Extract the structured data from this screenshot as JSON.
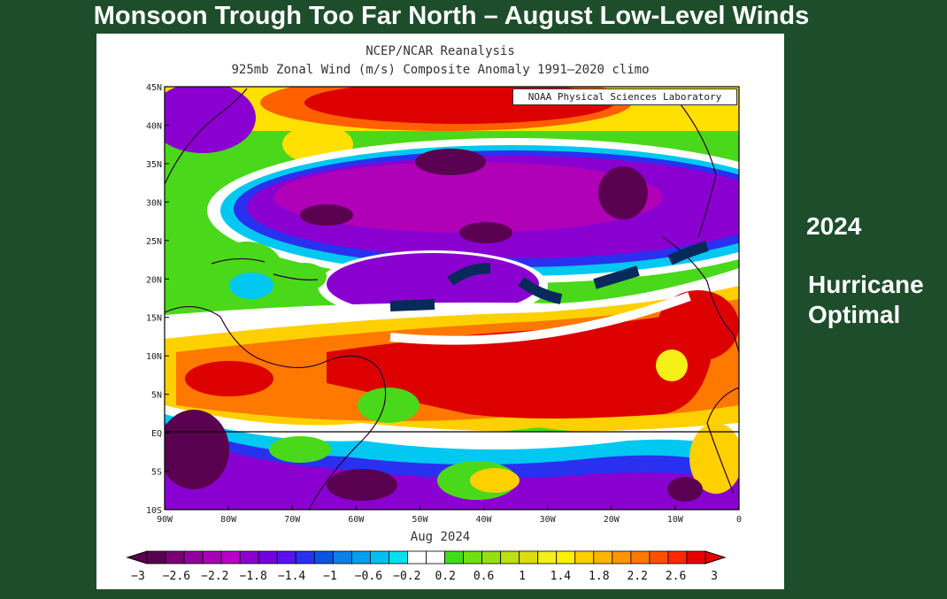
{
  "slide_title": "Monsoon Trough Too Far North – August Low-Level Winds",
  "map": {
    "title_line1": "NCEP/NCAR Reanalysis",
    "title_line2": "925mb Zonal Wind (m/s) Composite Anomaly 1991–2020 climo",
    "credit": "NOAA Physical Sciences Laboratory",
    "period": "Aug 2024",
    "lat_labels": [
      "45N",
      "40N",
      "35N",
      "30N",
      "25N",
      "20N",
      "15N",
      "10N",
      "5N",
      "EQ",
      "5S",
      "10S"
    ],
    "lon_labels": [
      "90W",
      "80W",
      "70W",
      "60W",
      "50W",
      "40W",
      "30W",
      "20W",
      "10W",
      "0"
    ],
    "colorbar_labels": [
      "-3",
      "-2.6",
      "-2.2",
      "-1.8",
      "-1.4",
      "-1",
      "-0.6",
      "-0.2",
      "0.2",
      "0.6",
      "1",
      "1.4",
      "1.8",
      "2.2",
      "2.6",
      "3"
    ],
    "colorbar_colors": [
      "#5a0050",
      "#7a0073",
      "#93009a",
      "#a800b4",
      "#b800c8",
      "#8a00d0",
      "#7000e0",
      "#5a10f0",
      "#2a30f0",
      "#0a55e0",
      "#0a80e8",
      "#05a0f0",
      "#00c0f0",
      "#00e0f0",
      "#ffffff",
      "#ffffff",
      "#40dc1a",
      "#6ee010",
      "#96e010",
      "#bce010",
      "#dcdc10",
      "#f4f018",
      "#fff000",
      "#ffd000",
      "#ffb400",
      "#ff9600",
      "#ff7800",
      "#ff5000",
      "#ff2800",
      "#e60000"
    ]
  },
  "side": {
    "year": "2024",
    "label_line1": "Hurricane",
    "label_line2": "Optimal"
  }
}
